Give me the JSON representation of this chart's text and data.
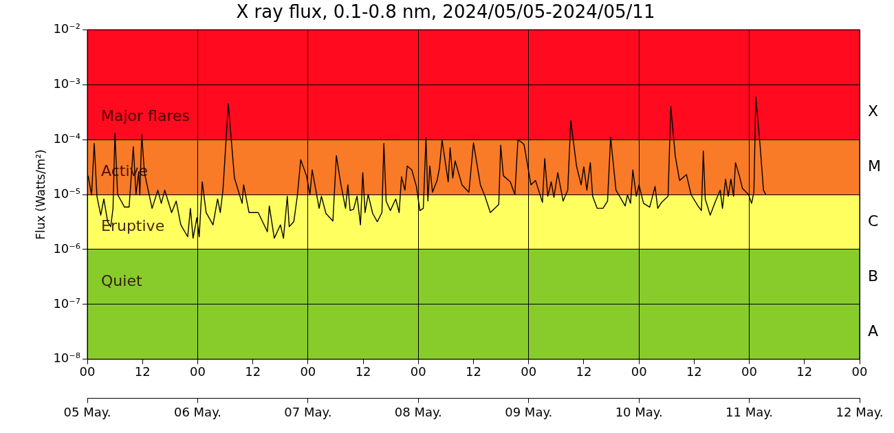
{
  "chart_data": {
    "type": "line",
    "title": "X ray flux, 0.1-0.8 nm, 2024/05/05-2024/05/11",
    "ylabel": "Flux (Watts/m²)",
    "x": [
      "2024-05-05T00:10",
      "2024-05-05T00:55",
      "2024-05-05T01:30",
      "2024-05-05T02:05",
      "2024-05-05T02:55",
      "2024-05-05T03:35",
      "2024-05-05T04:25",
      "2024-05-05T05:05",
      "2024-05-05T05:35",
      "2024-05-05T06:00",
      "2024-05-05T06:35",
      "2024-05-05T08:05",
      "2024-05-05T09:05",
      "2024-05-05T10:00",
      "2024-05-05T10:35",
      "2024-05-05T11:10",
      "2024-05-05T11:25",
      "2024-05-05T11:50",
      "2024-05-05T12:25",
      "2024-05-05T14:05",
      "2024-05-05T15:20",
      "2024-05-05T16:05",
      "2024-05-05T16:50",
      "2024-05-05T18:20",
      "2024-05-05T19:20",
      "2024-05-05T20:20",
      "2024-05-05T21:50",
      "2024-05-05T22:25",
      "2024-05-05T23:00",
      "2024-05-05T23:50",
      "2024-05-06T00:20",
      "2024-05-06T01:00",
      "2024-05-06T01:50",
      "2024-05-06T03:20",
      "2024-05-06T04:20",
      "2024-05-06T04:55",
      "2024-05-06T05:30",
      "2024-05-06T06:40",
      "2024-05-06T08:00",
      "2024-05-06T09:40",
      "2024-05-06T10:00",
      "2024-05-06T11:10",
      "2024-05-06T13:10",
      "2024-05-06T15:10",
      "2024-05-06T15:35",
      "2024-05-06T16:40",
      "2024-05-06T18:00",
      "2024-05-06T18:40",
      "2024-05-06T19:30",
      "2024-05-06T19:55",
      "2024-05-06T20:55",
      "2024-05-06T21:40",
      "2024-05-06T22:25",
      "2024-05-06T23:40",
      "2024-05-07T00:25",
      "2024-05-07T00:55",
      "2024-05-07T02:25",
      "2024-05-07T02:55",
      "2024-05-07T03:55",
      "2024-05-07T05:25",
      "2024-05-07T06:10",
      "2024-05-07T07:10",
      "2024-05-07T08:10",
      "2024-05-07T08:40",
      "2024-05-07T09:10",
      "2024-05-07T09:55",
      "2024-05-07T10:40",
      "2024-05-07T11:25",
      "2024-05-07T11:55",
      "2024-05-07T12:25",
      "2024-05-07T13:05",
      "2024-05-07T14:05",
      "2024-05-07T15:05",
      "2024-05-07T16:05",
      "2024-05-07T16:30",
      "2024-05-07T17:00",
      "2024-05-07T17:55",
      "2024-05-07T19:05",
      "2024-05-07T19:50",
      "2024-05-07T20:20",
      "2024-05-07T21:05",
      "2024-05-07T21:35",
      "2024-05-07T22:35",
      "2024-05-07T23:35",
      "2024-05-08T00:20",
      "2024-05-08T01:05",
      "2024-05-08T01:40",
      "2024-05-08T02:05",
      "2024-05-08T02:30",
      "2024-05-08T03:05",
      "2024-05-08T04:05",
      "2024-05-08T04:35",
      "2024-05-08T05:10",
      "2024-05-08T06:30",
      "2024-05-08T06:55",
      "2024-05-08T07:30",
      "2024-05-08T08:00",
      "2024-05-08T09:30",
      "2024-05-08T11:00",
      "2024-05-08T12:00",
      "2024-05-08T13:30",
      "2024-05-08T14:30",
      "2024-05-08T15:40",
      "2024-05-08T17:30",
      "2024-05-08T17:55",
      "2024-05-08T18:30",
      "2024-05-08T20:00",
      "2024-05-08T21:00",
      "2024-05-08T21:40",
      "2024-05-08T22:30",
      "2024-05-08T23:00",
      "2024-05-09T00:30",
      "2024-05-09T01:30",
      "2024-05-09T03:00",
      "2024-05-09T03:30",
      "2024-05-09T04:10",
      "2024-05-09T04:55",
      "2024-05-09T05:30",
      "2024-05-09T06:20",
      "2024-05-09T07:30",
      "2024-05-09T08:30",
      "2024-05-09T09:10",
      "2024-05-09T10:25",
      "2024-05-09T11:25",
      "2024-05-09T12:00",
      "2024-05-09T12:40",
      "2024-05-09T13:25",
      "2024-05-09T13:55",
      "2024-05-09T14:55",
      "2024-05-09T16:10",
      "2024-05-09T17:10",
      "2024-05-09T17:50",
      "2024-05-09T19:00",
      "2024-05-09T21:00",
      "2024-05-09T21:30",
      "2024-05-09T22:10",
      "2024-05-09T22:40",
      "2024-05-09T23:25",
      "2024-05-10T00:00",
      "2024-05-10T01:00",
      "2024-05-10T02:20",
      "2024-05-10T03:30",
      "2024-05-10T04:05",
      "2024-05-10T04:55",
      "2024-05-10T06:20",
      "2024-05-10T06:55",
      "2024-05-10T07:55",
      "2024-05-10T08:50",
      "2024-05-10T10:20",
      "2024-05-10T11:20",
      "2024-05-10T12:50",
      "2024-05-10T13:35",
      "2024-05-10T14:00",
      "2024-05-10T14:25",
      "2024-05-10T15:30",
      "2024-05-10T16:40",
      "2024-05-10T17:40",
      "2024-05-10T18:10",
      "2024-05-10T18:50",
      "2024-05-10T19:25",
      "2024-05-10T20:00",
      "2024-05-10T20:35",
      "2024-05-10T21:00",
      "2024-05-10T21:50",
      "2024-05-10T22:30",
      "2024-05-10T23:50",
      "2024-05-11T00:30",
      "2024-05-11T01:00",
      "2024-05-11T01:25",
      "2024-05-11T02:20",
      "2024-05-11T03:05",
      "2024-05-11T03:35"
    ],
    "series": [
      {
        "color": "#000000",
        "values": [
          2.2e-05,
          9.8e-06,
          8.5e-05,
          9.3e-06,
          4.2e-06,
          8.3e-06,
          3.2e-06,
          2.6e-06,
          5.6e-06,
          0.00013,
          1e-05,
          5.9e-06,
          5.9e-06,
          7.4e-05,
          1e-05,
          2.6e-05,
          9.8e-06,
          0.000126,
          2.5e-05,
          5.6e-06,
          1.2e-05,
          6.9e-06,
          1.2e-05,
          4.7e-06,
          7.6e-06,
          2.8e-06,
          1.7e-06,
          5.6e-06,
          1.6e-06,
          3.8e-06,
          1.7e-06,
          1.7e-05,
          4.7e-06,
          2.8e-06,
          8.3e-06,
          4.7e-06,
          1.2e-05,
          0.00045,
          2e-05,
          6.9e-06,
          1.5e-05,
          4.7e-06,
          4.7e-06,
          2.1e-06,
          6.2e-06,
          1.6e-06,
          2.8e-06,
          1.6e-06,
          9.3e-06,
          2.6e-06,
          3.2e-06,
          9.3e-06,
          4.3e-05,
          2.2e-05,
          1e-05,
          2.8e-05,
          5.6e-06,
          9.3e-06,
          4.5e-06,
          3.3e-06,
          5.1e-05,
          1.5e-05,
          5.6e-06,
          1.5e-05,
          5.1e-06,
          5.4e-06,
          9.3e-06,
          2.8e-06,
          2.5e-05,
          4.7e-06,
          1e-05,
          4.5e-06,
          3.2e-06,
          4.7e-06,
          8.5e-05,
          7.6e-06,
          5.1e-06,
          8.3e-06,
          4.7e-06,
          2.1e-05,
          1.2e-05,
          3.3e-05,
          2.8e-05,
          1.4e-05,
          5.1e-06,
          5.6e-06,
          0.00011,
          7.6e-06,
          3.3e-05,
          1.1e-05,
          1.8e-05,
          3e-05,
          9.8e-05,
          1.7e-05,
          7.1e-05,
          2e-05,
          4.1e-05,
          1.5e-05,
          1.1e-05,
          8.7e-05,
          1.5e-05,
          9.3e-06,
          4.7e-06,
          6.6e-06,
          7.9e-05,
          2.2e-05,
          1.7e-05,
          1e-05,
          9.8e-05,
          8.9e-05,
          8.1e-05,
          1.5e-05,
          1.8e-05,
          7.2e-06,
          4.5e-05,
          9.3e-06,
          1.7e-05,
          8.9e-06,
          2.5e-05,
          7.6e-06,
          1.2e-05,
          0.00022,
          3.3e-05,
          1.5e-05,
          3.2e-05,
          1.2e-05,
          3.8e-05,
          9.3e-06,
          5.6e-06,
          5.6e-06,
          7.6e-06,
          0.00011,
          1.2e-05,
          6.2e-06,
          9.8e-06,
          6.9e-06,
          2.8e-05,
          9.3e-06,
          1.5e-05,
          6.9e-06,
          5.9e-06,
          1.4e-05,
          5.6e-06,
          7.2e-06,
          9.3e-06,
          0.0004,
          4.9e-05,
          1.8e-05,
          2.3e-05,
          1e-05,
          6.2e-06,
          5.1e-06,
          6.2e-05,
          8.3e-06,
          4.2e-06,
          7.6e-06,
          1.2e-05,
          5.6e-06,
          1.9e-05,
          9.3e-06,
          1.9e-05,
          9.3e-06,
          3.8e-05,
          2.2e-05,
          1.3e-05,
          1e-05,
          6.9e-06,
          1.1e-05,
          0.0006,
          8.1e-05,
          1.2e-05,
          1e-05
        ]
      }
    ],
    "log": "y",
    "grid": true,
    "xlim": [
      "2024-05-05",
      "2024-05-12"
    ],
    "xticks": [
      {
        "value": "2024-05-05T00:00",
        "label": "00"
      },
      {
        "value": "2024-05-05T12:00",
        "label": "12"
      },
      {
        "value": "2024-05-06T00:00",
        "label": "00"
      },
      {
        "value": "2024-05-06T12:00",
        "label": "12"
      },
      {
        "value": "2024-05-07T00:00",
        "label": "00"
      },
      {
        "value": "2024-05-07T12:00",
        "label": "12"
      },
      {
        "value": "2024-05-08T00:00",
        "label": "00"
      },
      {
        "value": "2024-05-08T12:00",
        "label": "12"
      },
      {
        "value": "2024-05-09T00:00",
        "label": "00"
      },
      {
        "value": "2024-05-09T12:00",
        "label": "12"
      },
      {
        "value": "2024-05-10T00:00",
        "label": "00"
      },
      {
        "value": "2024-05-10T12:00",
        "label": "12"
      },
      {
        "value": "2024-05-11T00:00",
        "label": "00"
      },
      {
        "value": "2024-05-11T12:00",
        "label": "12"
      },
      {
        "value": "2024-05-12T00:00",
        "label": "00"
      }
    ],
    "x2lim": [
      "2024-05-05",
      "2024-05-12"
    ],
    "x2ticks": [
      {
        "value": "2024-05-05",
        "label": "05 May."
      },
      {
        "value": "2024-05-06",
        "label": "06 May."
      },
      {
        "value": "2024-05-07",
        "label": "07 May."
      },
      {
        "value": "2024-05-08",
        "label": "08 May."
      },
      {
        "value": "2024-05-09",
        "label": "09 May."
      },
      {
        "value": "2024-05-10",
        "label": "10 May."
      },
      {
        "value": "2024-05-11",
        "label": "11 May."
      },
      {
        "value": "2024-05-12",
        "label": "12 May."
      }
    ],
    "ylim": [
      1e-08,
      0.01
    ],
    "yticks": [
      {
        "value": 1e-08,
        "label": "10⁻⁸"
      },
      {
        "value": 1e-07,
        "label": "10⁻⁷"
      },
      {
        "value": 1e-06,
        "label": "10⁻⁶"
      },
      {
        "value": 1e-05,
        "label": "10⁻⁵"
      },
      {
        "value": 0.0001,
        "label": "10⁻⁴"
      },
      {
        "value": 0.001,
        "label": "10⁻³"
      },
      {
        "value": 0.01,
        "label": "10⁻²"
      }
    ],
    "annotations": [
      "A",
      "B",
      "C",
      "M",
      "X"
    ],
    "bands": [
      {
        "axis": "y",
        "from": 0.0001,
        "to": 0.01,
        "label": "Major flares",
        "color": "#ff0a1e"
      },
      {
        "axis": "y",
        "from": 1e-05,
        "to": 0.0001,
        "label": "Active",
        "color": "#f97a27"
      },
      {
        "axis": "y",
        "from": 1e-06,
        "to": 1e-05,
        "label": "Eruptive",
        "color": "#ffff60"
      },
      {
        "axis": "y",
        "from": 1e-07,
        "to": 1e-06,
        "label": "Quiet",
        "color": "#88cc2c"
      },
      {
        "axis": "y",
        "from": 1e-08,
        "to": 1e-07,
        "color": "#88cc2c"
      }
    ]
  }
}
